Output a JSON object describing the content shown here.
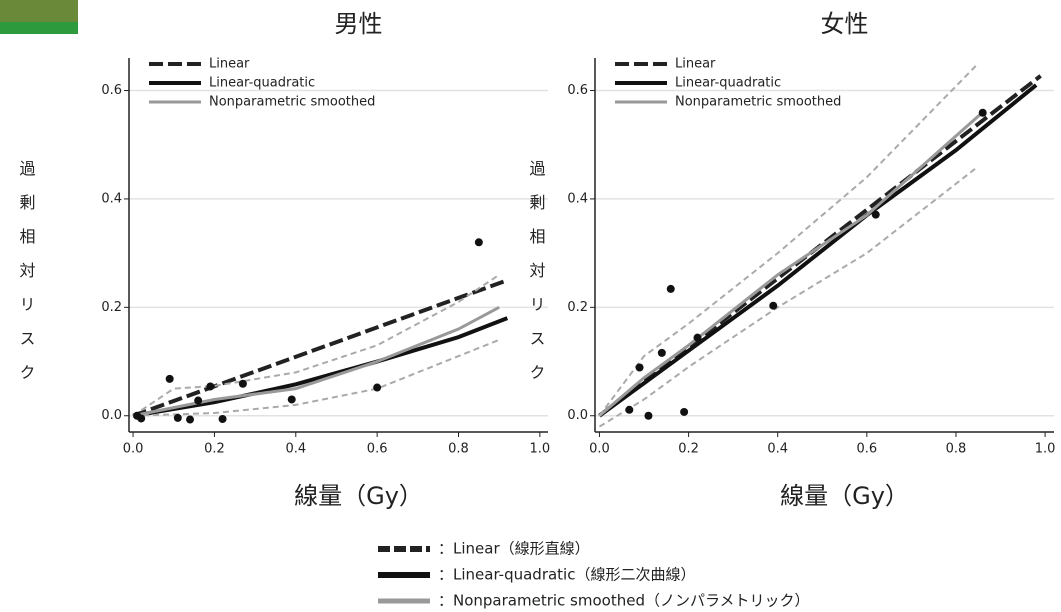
{
  "chart_data": [
    {
      "type": "line",
      "title": "男性",
      "xlabel": "線量（Gy）",
      "ylabel": "過剰相対リスク",
      "xlim": [
        -0.01,
        1.02
      ],
      "ylim": [
        -0.03,
        0.66
      ],
      "grid": true,
      "legend": "upper left",
      "xticks": [
        {
          "value": 0,
          "label": "0.0"
        },
        {
          "value": 0.2,
          "label": "0.2"
        },
        {
          "value": 0.4,
          "label": "0.4"
        },
        {
          "value": 0.6,
          "label": "0.6"
        },
        {
          "value": 0.8,
          "label": "0.8"
        },
        {
          "value": 1,
          "label": "1.0"
        }
      ],
      "yticks": [
        {
          "value": 0,
          "label": "0.0"
        },
        {
          "value": 0.2,
          "label": "0.2"
        },
        {
          "value": 0.4,
          "label": "0.4"
        },
        {
          "value": 0.6,
          "label": "0.6"
        }
      ],
      "series": [
        {
          "name": "Linear",
          "color": "#222222",
          "dash": true,
          "width": 4,
          "x": [
            0,
            0.92
          ],
          "values": [
            0,
            0.25
          ]
        },
        {
          "name": "Linear-quadratic",
          "color": "#111111",
          "dash": false,
          "width": 4,
          "x": [
            0,
            0.2,
            0.4,
            0.6,
            0.8,
            0.92
          ],
          "values": [
            0,
            0.025,
            0.058,
            0.1,
            0.145,
            0.18
          ]
        },
        {
          "name": "Nonparametric smoothed",
          "color": "#999999",
          "dash": false,
          "width": 3,
          "x": [
            0,
            0.1,
            0.2,
            0.4,
            0.6,
            0.8,
            0.9
          ],
          "values": [
            0,
            0.015,
            0.03,
            0.05,
            0.1,
            0.16,
            0.2
          ]
        },
        {
          "color": "#aaaaaa",
          "dash": true,
          "width": 2,
          "x": [
            0,
            0.1,
            0.2,
            0.4,
            0.6,
            0.8,
            0.9
          ],
          "values": [
            0,
            0.05,
            0.055,
            0.08,
            0.13,
            0.21,
            0.26
          ]
        },
        {
          "color": "#aaaaaa",
          "dash": true,
          "width": 2,
          "x": [
            0,
            0.2,
            0.4,
            0.6,
            0.8,
            0.9
          ],
          "values": [
            0,
            0.005,
            0.02,
            0.05,
            0.11,
            0.14
          ]
        },
        {
          "color": "#111111",
          "points": true,
          "x": [
            0.01,
            0.02,
            0.09,
            0.11,
            0.14,
            0.16,
            0.19,
            0.22,
            0.27,
            0.39,
            0.6,
            0.85
          ],
          "values": [
            0,
            -0.005,
            0.068,
            -0.004,
            -0.007,
            0.028,
            0.054,
            -0.006,
            0.059,
            0.03,
            0.052,
            0.32
          ]
        }
      ]
    },
    {
      "type": "line",
      "title": "女性",
      "xlabel": "線量（Gy）",
      "ylabel": "過剰相対リスク",
      "xlim": [
        -0.01,
        1.02
      ],
      "ylim": [
        -0.03,
        0.66
      ],
      "grid": true,
      "legend": "upper left",
      "xticks": [
        {
          "value": 0,
          "label": "0.0"
        },
        {
          "value": 0.2,
          "label": "0.2"
        },
        {
          "value": 0.4,
          "label": "0.4"
        },
        {
          "value": 0.6,
          "label": "0.6"
        },
        {
          "value": 0.8,
          "label": "0.8"
        },
        {
          "value": 1,
          "label": "1.0"
        }
      ],
      "yticks": [
        {
          "value": 0,
          "label": "0.0"
        },
        {
          "value": 0.2,
          "label": "0.2"
        },
        {
          "value": 0.4,
          "label": "0.4"
        },
        {
          "value": 0.6,
          "label": "0.6"
        }
      ],
      "series": [
        {
          "name": "Linear",
          "color": "#222222",
          "dash": true,
          "width": 4,
          "x": [
            0,
            0.99
          ],
          "values": [
            0,
            0.627
          ]
        },
        {
          "name": "Linear-quadratic",
          "color": "#111111",
          "dash": false,
          "width": 4,
          "x": [
            0,
            0.1,
            0.2,
            0.4,
            0.6,
            0.8,
            0.98
          ],
          "values": [
            0,
            0.06,
            0.12,
            0.24,
            0.37,
            0.49,
            0.61
          ]
        },
        {
          "name": "Nonparametric smoothed",
          "color": "#999999",
          "dash": false,
          "width": 3,
          "x": [
            0,
            0.1,
            0.2,
            0.4,
            0.6,
            0.86
          ],
          "values": [
            0,
            0.07,
            0.13,
            0.26,
            0.37,
            0.56
          ]
        },
        {
          "color": "#aaaaaa",
          "dash": true,
          "width": 2,
          "x": [
            0,
            0.1,
            0.2,
            0.4,
            0.6,
            0.85
          ],
          "values": [
            0,
            0.11,
            0.17,
            0.3,
            0.44,
            0.65
          ]
        },
        {
          "color": "#aaaaaa",
          "dash": true,
          "width": 2,
          "x": [
            0,
            0.1,
            0.2,
            0.4,
            0.6,
            0.85
          ],
          "values": [
            -0.02,
            0.03,
            0.09,
            0.2,
            0.3,
            0.46
          ]
        },
        {
          "color": "#111111",
          "points": true,
          "x": [
            0.067,
            0.09,
            0.11,
            0.14,
            0.16,
            0.19,
            0.22,
            0.39,
            0.62,
            0.86
          ],
          "values": [
            0.011,
            0.089,
            0,
            0.116,
            0.234,
            0.007,
            0.144,
            0.203,
            0.371,
            0.559
          ]
        }
      ]
    }
  ],
  "legend_note": [
    "：Linear（線形直線）",
    "：Linear-quadratic（線形二次曲線）",
    "：Nonparametric smoothed（ノンパラメトリック）"
  ]
}
